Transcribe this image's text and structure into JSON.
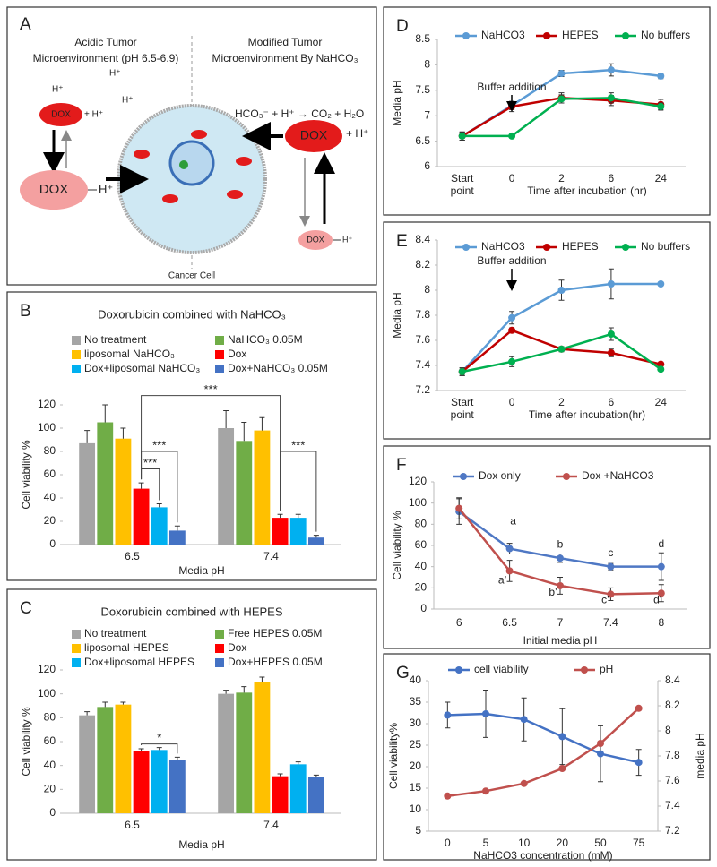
{
  "diagram": {
    "panel": "A",
    "left_heading": [
      "Acidic Tumor",
      "Microenvironment (pH 6.5-6.9)"
    ],
    "right_heading": [
      "Modified Tumor",
      "Microenvironment By NaHCO₃"
    ],
    "reaction": "HCO₃⁻ + H⁺ → CO₂ + H₂O",
    "proton": "H⁺",
    "plus_proton": "+ H⁺",
    "drug": "DOX",
    "cell_label": "Cancer Cell"
  },
  "chart_data": [
    {
      "panel": "B",
      "type": "bar",
      "title": "Doxorubicin combined with NaHCO₃",
      "x_label": "Media pH",
      "y_label": "Cell viability %",
      "categories": [
        "6.5",
        "7.4"
      ],
      "series": [
        {
          "name": "No treatment",
          "color": "#a5a5a5",
          "values": [
            87,
            100
          ],
          "errors": [
            11,
            15
          ]
        },
        {
          "name": "NaHCO₃ 0.05M",
          "color": "#70ad47",
          "values": [
            105,
            89
          ],
          "errors": [
            15,
            16
          ]
        },
        {
          "name": "liposomal NaHCO₃",
          "color": "#ffc000",
          "values": [
            91,
            98
          ],
          "errors": [
            9,
            11
          ]
        },
        {
          "name": "Dox",
          "color": "#ff0000",
          "values": [
            48,
            23
          ],
          "errors": [
            5,
            3
          ]
        },
        {
          "name": "Dox+liposomal NaHCO₃",
          "color": "#00b0f0",
          "values": [
            32,
            23
          ],
          "errors": [
            3,
            3
          ]
        },
        {
          "name": "Dox+NaHCO₃ 0.05M",
          "color": "#4472c4",
          "values": [
            12,
            6
          ],
          "errors": [
            4,
            2
          ]
        }
      ],
      "annotations": [
        "***",
        "***",
        "***",
        "***"
      ],
      "ylim": [
        0,
        120
      ],
      "yticks": [
        0,
        20,
        40,
        60,
        80,
        100,
        120
      ],
      "grid": false
    },
    {
      "panel": "C",
      "type": "bar",
      "title": "Doxorubicin combined with HEPES",
      "x_label": "Media pH",
      "y_label": "Cell viability %",
      "categories": [
        "6.5",
        "7.4"
      ],
      "series": [
        {
          "name": "No treatment",
          "color": "#a5a5a5",
          "values": [
            82,
            100
          ],
          "errors": [
            3,
            3
          ]
        },
        {
          "name": "Free HEPES 0.05M",
          "color": "#70ad47",
          "values": [
            89,
            101
          ],
          "errors": [
            4,
            5
          ]
        },
        {
          "name": "liposomal HEPES",
          "color": "#ffc000",
          "values": [
            91,
            110
          ],
          "errors": [
            2,
            4
          ]
        },
        {
          "name": "Dox",
          "color": "#ff0000",
          "values": [
            52,
            31
          ],
          "errors": [
            2,
            2
          ]
        },
        {
          "name": "Dox+liposomal HEPES",
          "color": "#00b0f0",
          "values": [
            53,
            41
          ],
          "errors": [
            2,
            2
          ]
        },
        {
          "name": "Dox+HEPES 0.05M",
          "color": "#4472c4",
          "values": [
            45,
            30
          ],
          "errors": [
            2,
            2
          ]
        }
      ],
      "annotations": [
        "*"
      ],
      "ylim": [
        0,
        120
      ],
      "yticks": [
        0,
        20,
        40,
        60,
        80,
        100,
        120
      ],
      "grid": false
    },
    {
      "panel": "D",
      "type": "line",
      "x_label": "Time after incubation (hr)",
      "y_label": "Media pH",
      "categories": [
        "Start point",
        "0",
        "2",
        "6",
        "24"
      ],
      "series": [
        {
          "name": "NaHCO3",
          "color": "#5b9bd5",
          "values": [
            6.6,
            7.2,
            7.83,
            7.9,
            7.78
          ],
          "errors": [
            0.08,
            0.08,
            0.06,
            0.12,
            0.05
          ]
        },
        {
          "name": "HEPES",
          "color": "#c00000",
          "values": [
            6.6,
            7.18,
            7.35,
            7.3,
            7.22
          ],
          "errors": [
            0.08,
            0.1,
            0.1,
            0.1,
            0.1
          ]
        },
        {
          "name": "No buffers",
          "color": "#00b050",
          "values": [
            6.6,
            6.6,
            7.33,
            7.35,
            7.18
          ],
          "errors": [
            0.08,
            0.03,
            0.08,
            0.1,
            0.07
          ]
        }
      ],
      "annotations": [
        "Buffer addition"
      ],
      "ylim": [
        6,
        8.5
      ],
      "yticks": [
        6,
        6.5,
        7,
        7.5,
        8,
        8.5
      ],
      "grid": false
    },
    {
      "panel": "E",
      "type": "line",
      "x_label": "Time after incubation(hr)",
      "y_label": "Media pH",
      "categories": [
        "Start point",
        "0",
        "2",
        "6",
        "24"
      ],
      "series": [
        {
          "name": "NaHCO3",
          "color": "#5b9bd5",
          "values": [
            7.35,
            7.78,
            8.0,
            8.05,
            8.05
          ],
          "errors": [
            0.03,
            0.05,
            0.08,
            0.12,
            0
          ]
        },
        {
          "name": "HEPES",
          "color": "#c00000",
          "values": [
            7.35,
            7.68,
            7.53,
            7.5,
            7.41
          ],
          "errors": [
            0.03,
            0.02,
            0.02,
            0.03,
            0.01
          ]
        },
        {
          "name": "No buffers",
          "color": "#00b050",
          "values": [
            7.35,
            7.43,
            7.53,
            7.65,
            7.37
          ],
          "errors": [
            0.03,
            0.04,
            0.02,
            0.05,
            0.01
          ]
        }
      ],
      "annotations": [
        "Buffer addition"
      ],
      "ylim": [
        7.2,
        8.4
      ],
      "yticks": [
        7.2,
        7.4,
        7.6,
        7.8,
        8,
        8.2,
        8.4
      ],
      "grid": false
    },
    {
      "panel": "F",
      "type": "line",
      "x_label": "Initial media pH",
      "y_label": "Cell viability %",
      "categories": [
        "6",
        "6.5",
        "7",
        "7.4",
        "8"
      ],
      "series": [
        {
          "name": "Dox only",
          "color": "#4f78c4",
          "values": [
            92,
            57,
            48,
            40,
            40
          ],
          "errors": [
            12,
            5,
            4,
            3,
            13
          ]
        },
        {
          "name": "Dox +NaHCO3",
          "color": "#c0504d",
          "values": [
            95,
            36,
            22,
            14,
            15
          ],
          "errors": [
            10,
            10,
            8,
            6,
            8
          ]
        }
      ],
      "annotations": [
        "a",
        "b",
        "c",
        "d",
        "a’",
        "b’",
        "c’",
        "d’"
      ],
      "ylim": [
        0,
        120
      ],
      "yticks": [
        0,
        20,
        40,
        60,
        80,
        100,
        120
      ],
      "grid": false
    },
    {
      "panel": "G",
      "type": "line",
      "x_label": "NaHCO3 concentration (mM)",
      "y_label": "Cell viability%",
      "y2_label": "media pH",
      "categories": [
        "0",
        "5",
        "10",
        "20",
        "50",
        "75"
      ],
      "series": [
        {
          "name": "cell viability",
          "color": "#4472c4",
          "values": [
            32,
            32.3,
            31,
            27,
            23,
            21
          ],
          "errors": [
            3,
            5.5,
            5,
            6.5,
            6.5,
            3
          ]
        },
        {
          "name": "pH",
          "color": "#c0504d",
          "axis": "y2",
          "values": [
            7.48,
            7.52,
            7.58,
            7.7,
            7.9,
            8.18
          ]
        }
      ],
      "ylim": [
        5,
        40
      ],
      "yticks": [
        5,
        10,
        15,
        20,
        25,
        30,
        35,
        40
      ],
      "y2lim": [
        7.2,
        8.4
      ],
      "y2ticks": [
        7.2,
        7.4,
        7.6,
        7.8,
        8,
        8.2,
        8.4
      ],
      "grid": false
    }
  ]
}
